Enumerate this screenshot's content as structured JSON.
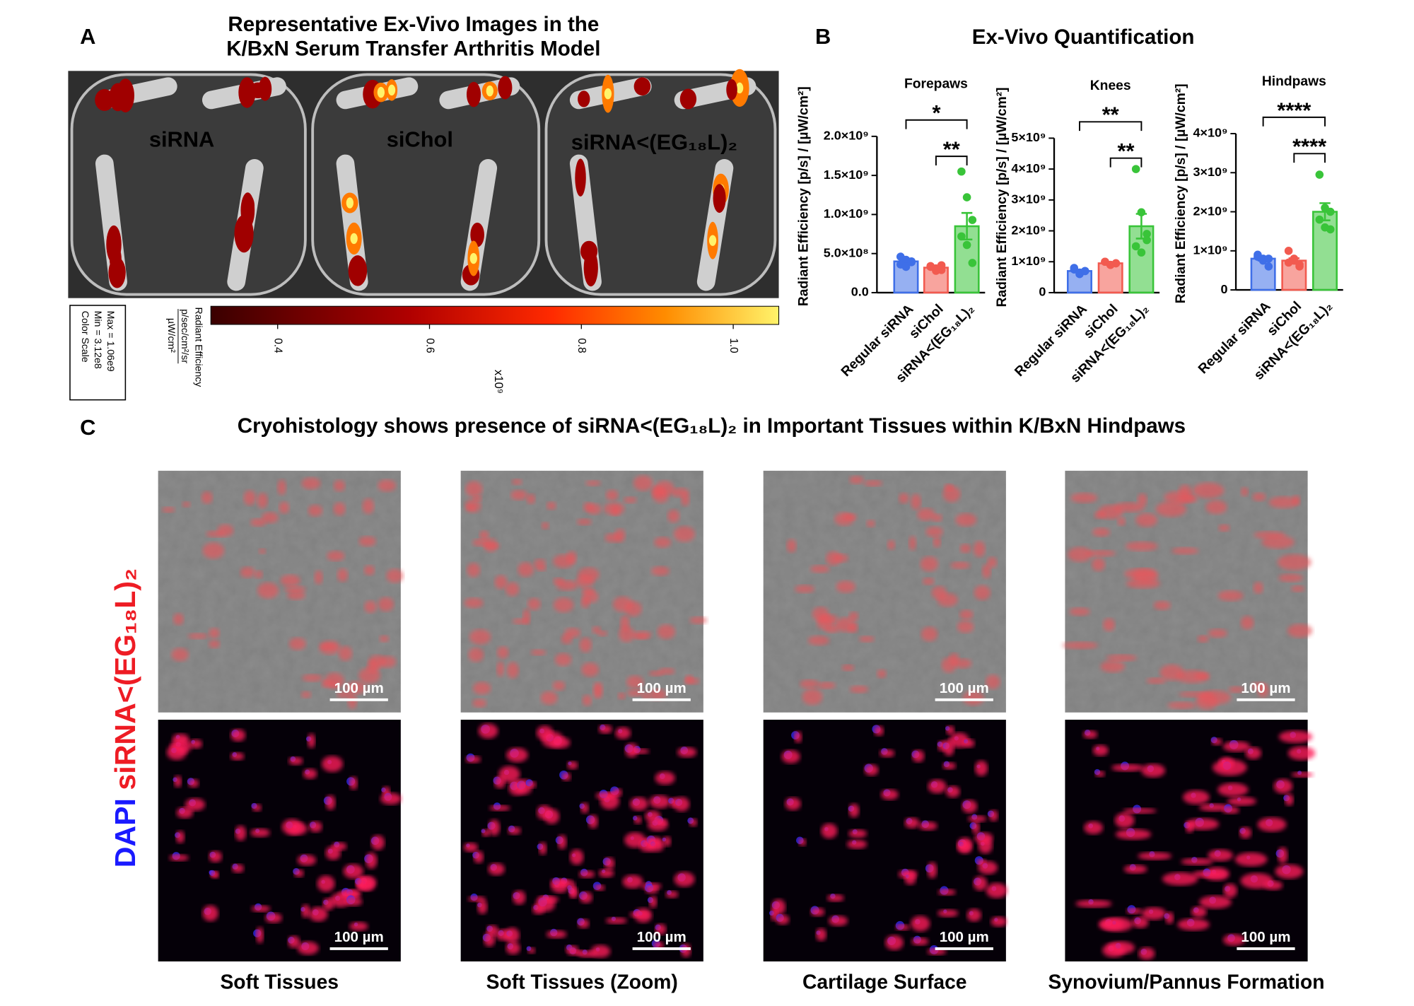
{
  "panel_a": {
    "letter": "A",
    "title_lines": [
      "Representative Ex-Vivo Images in the",
      "K/BxN Serum Transfer Arthritis Model"
    ],
    "groups": [
      {
        "label": "siRNA",
        "color": "#2f86e8"
      },
      {
        "label": "siChol",
        "color": "#e8281e"
      },
      {
        "label": "siRNA<(EG₁₈L)₂",
        "color": "#2fd12f"
      }
    ],
    "color_scale_box": [
      "Color Scale",
      "Min = 3.12e8",
      "Max = 1.06e9"
    ],
    "colorbar": {
      "title": "Radiant Efficiency",
      "unit_numerator": "p/sec/cm²/sr",
      "unit_denominator": "µW/cm²",
      "multiplier": "x10⁹",
      "lim": [
        0.312,
        1.06
      ],
      "ticks": [
        0.4,
        0.6,
        0.8,
        {
          "value": 1.0,
          "label": "1.0"
        }
      ]
    }
  },
  "panel_b": {
    "letter": "B",
    "title": "Ex-Vivo Quantification"
  },
  "chart_data": [
    {
      "type": "bar",
      "title": "Forepaws",
      "y_label": "Radiant Efficiency [p/s] / [µW/cm²]",
      "categories": [
        "Regular siRNA",
        "siChol",
        "siRNA<(EG₁₈L)₂"
      ],
      "colors": [
        "#3f6fe8",
        "#f25a4f",
        "#39c439"
      ],
      "values": [
        400000000,
        320000000,
        850000000
      ],
      "errors": [
        30000000,
        20000000,
        170000000
      ],
      "points": [
        [
          460000000,
          420000000,
          390000000,
          360000000,
          330000000,
          400000000
        ],
        [
          340000000,
          310000000,
          290000000,
          330000000,
          280000000,
          350000000
        ],
        [
          1550000000,
          1220000000,
          930000000,
          720000000,
          610000000,
          380000000
        ]
      ],
      "ylim": [
        0,
        2000000000
      ],
      "yticks": [
        {
          "value": 0,
          "label": "0.0"
        },
        {
          "value": 500000000,
          "label": "5.0×10⁸"
        },
        {
          "value": 1000000000,
          "label": "1.0×10⁹"
        },
        {
          "value": 1500000000,
          "label": "1.5×10⁹"
        },
        {
          "value": 2000000000,
          "label": "2.0×10⁹"
        }
      ],
      "significance": [
        "*",
        "**"
      ]
    },
    {
      "type": "bar",
      "title": "Knees",
      "y_label": "Radiant Efficiency [p/s] / [µW/cm²]",
      "categories": [
        "Regular siRNA",
        "siChol",
        "siRNA<(EG₁₈L)₂"
      ],
      "colors": [
        "#3f6fe8",
        "#f25a4f",
        "#39c439"
      ],
      "values": [
        700000000,
        950000000,
        2150000000
      ],
      "errors": [
        40000000,
        30000000,
        400000000
      ],
      "points": [
        [
          800000000,
          600000000,
          700000000,
          750000000,
          650000000,
          700000000
        ],
        [
          1000000000,
          900000000,
          950000000,
          1000000000,
          900000000,
          950000000
        ],
        [
          4000000000,
          2600000000,
          1900000000,
          1500000000,
          1300000000,
          1700000000
        ]
      ],
      "ylim": [
        0,
        5000000000
      ],
      "yticks": [
        0,
        {
          "value": 1000000000,
          "label": "1×10⁹"
        },
        {
          "value": 2000000000,
          "label": "2×10⁹"
        },
        {
          "value": 3000000000,
          "label": "3×10⁹"
        },
        {
          "value": 4000000000,
          "label": "4×10⁹"
        },
        {
          "value": 5000000000,
          "label": "5×10⁹"
        }
      ],
      "significance": [
        "**",
        "**"
      ]
    },
    {
      "type": "bar",
      "title": "Hindpaws",
      "y_label": "Radiant Efficiency [p/s] / [µW/cm²]",
      "categories": [
        "Regular siRNA",
        "siChol",
        "siRNA<(EG₁₈L)₂"
      ],
      "colors": [
        "#3f6fe8",
        "#f25a4f",
        "#39c439"
      ],
      "values": [
        800000000,
        750000000,
        2000000000
      ],
      "errors": [
        50000000,
        60000000,
        220000000
      ],
      "points": [
        [
          900000000,
          800000000,
          600000000,
          850000000,
          750000000,
          800000000
        ],
        [
          1000000000,
          800000000,
          600000000,
          700000000,
          750000000,
          650000000
        ],
        [
          2950000000,
          2100000000,
          2000000000,
          1800000000,
          1600000000,
          1550000000
        ]
      ],
      "ylim": [
        0,
        4000000000
      ],
      "yticks": [
        0,
        {
          "value": 1000000000,
          "label": "1×10⁹"
        },
        {
          "value": 2000000000,
          "label": "2×10⁹"
        },
        {
          "value": 3000000000,
          "label": "3×10⁹"
        },
        {
          "value": 4000000000,
          "label": "4×10⁹"
        }
      ],
      "significance": [
        "****",
        "****"
      ]
    }
  ],
  "panel_c": {
    "letter": "C",
    "title": "Cryohistology shows presence of siRNA<(EG₁₈L)₂ in Important Tissues within K/BxN Hindpaws",
    "stain_label": {
      "dapi": "DAPI",
      "sirna": "siRNA<(EG₁₈L)₂"
    },
    "columns": [
      {
        "caption": "Soft Tissues",
        "scale_bars": [
          "100 µm",
          "100 µm"
        ]
      },
      {
        "caption": "Soft Tissues (Zoom)",
        "scale_bars": [
          "100 µm",
          "100 µm"
        ]
      },
      {
        "caption": "Cartilage Surface",
        "scale_bars": [
          "100 µm",
          "100 µm"
        ]
      },
      {
        "caption": "Synovium/Pannus Formation",
        "scale_bars": [
          "100 µm",
          "100 µm"
        ]
      }
    ]
  }
}
